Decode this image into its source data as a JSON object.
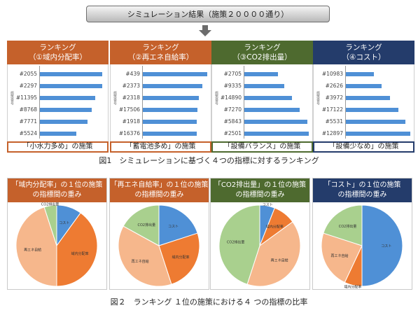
{
  "banner": "シミュレーション結果（施策２００００通り）",
  "colors": {
    "c1": "#c5612b",
    "c2": "#c5612b",
    "c3": "#4e6a2f",
    "c4": "#243c6b",
    "bar": "#4f90d6",
    "pie_cost": "#4f90d6",
    "pie_local": "#ee7b32",
    "pie_renew": "#f6b78c",
    "pie_co2": "#a9d08e"
  },
  "vertical_label": "施策番号",
  "ranking_panels": [
    {
      "title_line1": "ランキング",
      "title_line2": "（①域内分配率）",
      "items": [
        {
          "label": "#2055",
          "value": 0.97
        },
        {
          "label": "#2297",
          "value": 0.97
        },
        {
          "label": "#11395",
          "value": 0.86
        },
        {
          "label": "#8768",
          "value": 0.8
        },
        {
          "label": "#7771",
          "value": 0.74
        },
        {
          "label": "#5524",
          "value": 0.56
        }
      ],
      "footer": "「小水力多め」の施策"
    },
    {
      "title_line1": "ランキング",
      "title_line2": "（②再エネ自給率）",
      "items": [
        {
          "label": "#439",
          "value": 1.0
        },
        {
          "label": "#2373",
          "value": 0.92
        },
        {
          "label": "#2318",
          "value": 0.87
        },
        {
          "label": "#17506",
          "value": 0.85
        },
        {
          "label": "#1918",
          "value": 0.84
        },
        {
          "label": "#16376",
          "value": 0.84
        }
      ],
      "footer": "「蓄電池多め」の施策"
    },
    {
      "title_line1": "ランキング",
      "title_line2": "（③CO2排出量）",
      "items": [
        {
          "label": "#2705",
          "value": 0.52
        },
        {
          "label": "#9335",
          "value": 0.62
        },
        {
          "label": "#14890",
          "value": 0.74
        },
        {
          "label": "#7270",
          "value": 0.86
        },
        {
          "label": "#5843",
          "value": 0.98
        },
        {
          "label": "#2501",
          "value": 1.0
        }
      ],
      "footer": "「設備バランス」の施策"
    },
    {
      "title_line1": "ランキング",
      "title_line2": "（④コスト）",
      "items": [
        {
          "label": "#10983",
          "value": 0.43
        },
        {
          "label": "#2626",
          "value": 0.55
        },
        {
          "label": "#3972",
          "value": 0.68
        },
        {
          "label": "#17122",
          "value": 0.81
        },
        {
          "label": "#5531",
          "value": 0.92
        },
        {
          "label": "#12897",
          "value": 1.0
        }
      ],
      "footer": "「設備少なめ」の施策"
    }
  ],
  "fig1_caption": "図1　シミュレーションに基づく４つの指標に対するランキング",
  "pie_panels": [
    {
      "title_line1": "「域内分配率」の１位の施策",
      "title_line2": "の指標間の重み",
      "slices": [
        {
          "label": "コスト",
          "value": 10
        },
        {
          "label": "域内分配率",
          "value": 40
        },
        {
          "label": "再エネ自給",
          "value": 45
        },
        {
          "label": "CO2排出量",
          "value": 5
        }
      ]
    },
    {
      "title_line1": "「再エネ自給率」の１位の施策",
      "title_line2": "の指標間の重み",
      "slices": [
        {
          "label": "コスト",
          "value": 20
        },
        {
          "label": "域内分配率",
          "value": 25
        },
        {
          "label": "再エネ自給",
          "value": 38
        },
        {
          "label": "CO2排出量",
          "value": 17
        }
      ]
    },
    {
      "title_line1": "「CO2排出量」の１位の施策",
      "title_line2": "の指標間の重み",
      "slices": [
        {
          "label": "コスト",
          "value": 6
        },
        {
          "label": "域内分配率",
          "value": 9
        },
        {
          "label": "再エネ自給",
          "value": 40
        },
        {
          "label": "CO2排出量",
          "value": 45
        }
      ]
    },
    {
      "title_line1": "「コスト」の１位の施策",
      "title_line2": "の指標間の重み",
      "slices": [
        {
          "label": "コスト",
          "value": 50
        },
        {
          "label": "域内分配率",
          "value": 7
        },
        {
          "label": "再エネ自給",
          "value": 23
        },
        {
          "label": "CO2排出量",
          "value": 20
        }
      ]
    }
  ],
  "fig2_caption": "図２　ランキング １位の施策における４ つの指標の比率"
}
